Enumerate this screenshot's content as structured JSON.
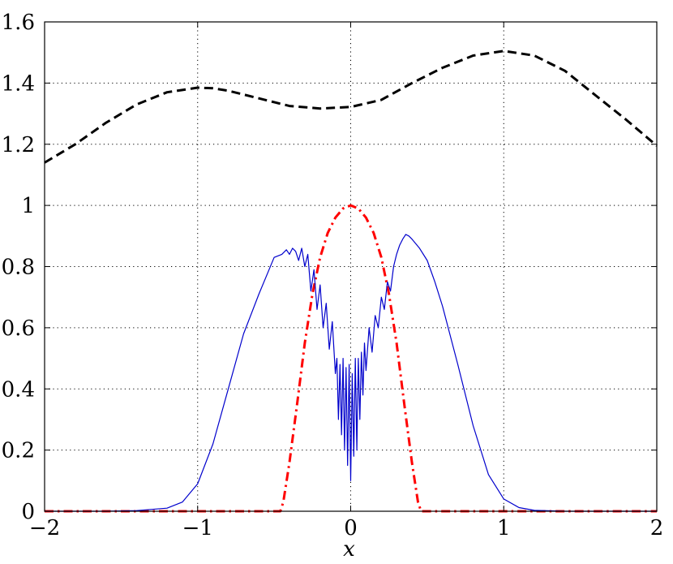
{
  "chart_data": {
    "type": "line",
    "title": "",
    "xlabel": "x",
    "ylabel": "",
    "xlim": [
      -2,
      2
    ],
    "ylim": [
      0,
      1.6
    ],
    "xticks": [
      -2,
      -1,
      0,
      1,
      2
    ],
    "yticks": [
      0,
      0.2,
      0.4,
      0.6,
      0.8,
      1,
      1.2,
      1.4,
      1.6
    ],
    "xtick_labels": [
      "−2",
      "−1",
      "0",
      "1",
      "2"
    ],
    "ytick_labels": [
      "0",
      "0.2",
      "0.4",
      "0.6",
      "0.8",
      "1",
      "1.2",
      "1.4",
      "1.6"
    ],
    "grid": true,
    "legend": "none",
    "series": [
      {
        "style": "dashed",
        "color": "#000000",
        "x": [
          -2.0,
          -1.8,
          -1.6,
          -1.4,
          -1.2,
          -1.0,
          -0.9,
          -0.8,
          -0.6,
          -0.4,
          -0.2,
          0.0,
          0.2,
          0.4,
          0.6,
          0.8,
          1.0,
          1.2,
          1.4,
          1.6,
          1.8,
          2.0
        ],
        "y": [
          1.14,
          1.2,
          1.27,
          1.33,
          1.37,
          1.385,
          1.383,
          1.375,
          1.35,
          1.325,
          1.317,
          1.322,
          1.345,
          1.4,
          1.45,
          1.49,
          1.505,
          1.49,
          1.44,
          1.36,
          1.28,
          1.195
        ]
      },
      {
        "style": "dash-dot",
        "color": "#ff0000",
        "x": [
          -2.0,
          -0.46,
          -0.44,
          -0.4,
          -0.35,
          -0.3,
          -0.25,
          -0.2,
          -0.15,
          -0.1,
          -0.05,
          0.0,
          0.05,
          0.1,
          0.15,
          0.2,
          0.25,
          0.3,
          0.35,
          0.4,
          0.44,
          0.46,
          2.0
        ],
        "y": [
          0.0,
          0.0,
          0.03,
          0.16,
          0.35,
          0.55,
          0.71,
          0.83,
          0.91,
          0.96,
          0.99,
          1.0,
          0.99,
          0.96,
          0.91,
          0.83,
          0.71,
          0.55,
          0.35,
          0.16,
          0.03,
          0.0,
          0.0
        ]
      },
      {
        "style": "solid",
        "color": "#0000cc",
        "x": [
          -2.0,
          -1.6,
          -1.4,
          -1.2,
          -1.1,
          -1.0,
          -0.9,
          -0.8,
          -0.7,
          -0.6,
          -0.55,
          -0.5,
          -0.45,
          -0.42,
          -0.4,
          -0.38,
          -0.36,
          -0.34,
          -0.32,
          -0.3,
          -0.28,
          -0.26,
          -0.24,
          -0.22,
          -0.2,
          -0.18,
          -0.16,
          -0.14,
          -0.12,
          -0.1,
          -0.09,
          -0.08,
          -0.07,
          -0.06,
          -0.05,
          -0.04,
          -0.03,
          -0.02,
          -0.01,
          0.0,
          0.01,
          0.02,
          0.03,
          0.04,
          0.05,
          0.06,
          0.07,
          0.08,
          0.09,
          0.1,
          0.12,
          0.14,
          0.16,
          0.18,
          0.2,
          0.22,
          0.24,
          0.26,
          0.28,
          0.3,
          0.32,
          0.34,
          0.36,
          0.38,
          0.4,
          0.45,
          0.5,
          0.55,
          0.6,
          0.7,
          0.8,
          0.9,
          1.0,
          1.1,
          1.2,
          1.4,
          1.6,
          2.0
        ],
        "y": [
          0.0,
          0.0,
          0.002,
          0.01,
          0.03,
          0.09,
          0.22,
          0.4,
          0.58,
          0.71,
          0.77,
          0.83,
          0.84,
          0.855,
          0.84,
          0.86,
          0.85,
          0.82,
          0.86,
          0.8,
          0.84,
          0.72,
          0.79,
          0.66,
          0.74,
          0.6,
          0.68,
          0.53,
          0.62,
          0.45,
          0.5,
          0.3,
          0.48,
          0.25,
          0.5,
          0.2,
          0.47,
          0.15,
          0.48,
          0.1,
          0.45,
          0.18,
          0.5,
          0.2,
          0.5,
          0.3,
          0.52,
          0.38,
          0.55,
          0.46,
          0.6,
          0.52,
          0.64,
          0.6,
          0.7,
          0.66,
          0.75,
          0.72,
          0.8,
          0.84,
          0.87,
          0.89,
          0.905,
          0.9,
          0.89,
          0.86,
          0.82,
          0.75,
          0.67,
          0.48,
          0.28,
          0.12,
          0.04,
          0.012,
          0.003,
          0.0,
          0.0,
          0.0
        ]
      }
    ]
  }
}
